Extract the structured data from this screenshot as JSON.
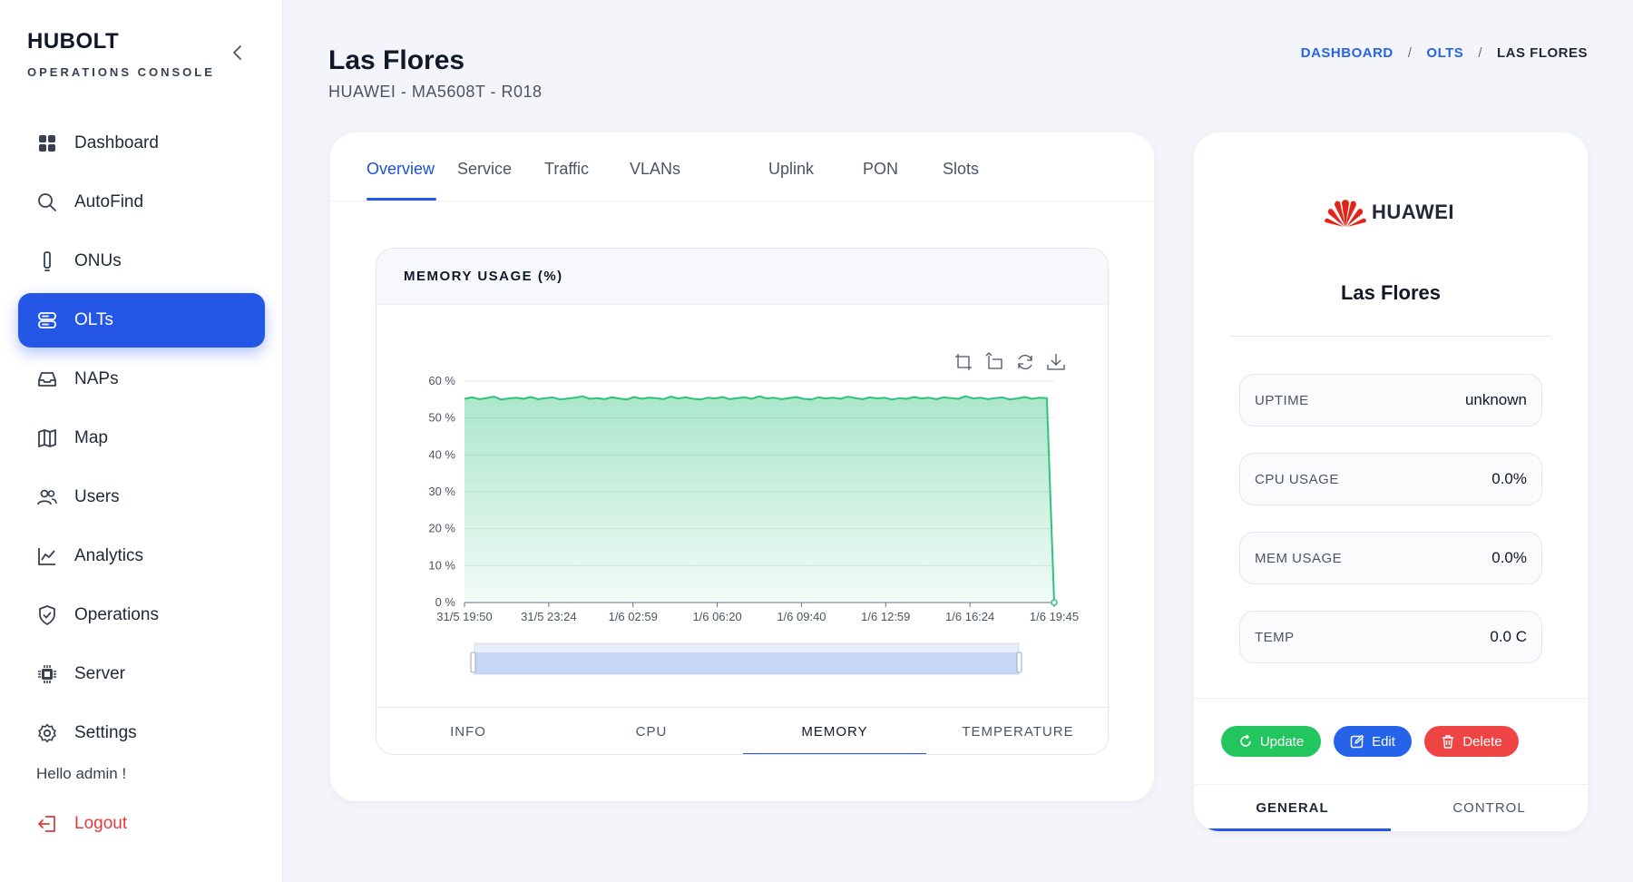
{
  "brand": {
    "title": "HUBOLT",
    "subtitle": "OPERATIONS CONSOLE"
  },
  "sidebar": {
    "items": [
      {
        "label": "Dashboard",
        "icon": "grid-icon"
      },
      {
        "label": "AutoFind",
        "icon": "search-icon"
      },
      {
        "label": "ONUs",
        "icon": "device-icon"
      },
      {
        "label": "OLTs",
        "icon": "server-stack-icon",
        "active": true
      },
      {
        "label": "NAPs",
        "icon": "inbox-icon"
      },
      {
        "label": "Map",
        "icon": "map-icon"
      },
      {
        "label": "Users",
        "icon": "users-icon"
      },
      {
        "label": "Analytics",
        "icon": "chart-line-icon"
      },
      {
        "label": "Operations",
        "icon": "shield-icon"
      },
      {
        "label": "Server",
        "icon": "chip-icon"
      },
      {
        "label": "Settings",
        "icon": "gear-icon"
      }
    ],
    "greeting": "Hello admin !",
    "logout": "Logout"
  },
  "header": {
    "title": "Las Flores",
    "subtitle": "HUAWEI - MA5608T - R018",
    "breadcrumb": [
      "DASHBOARD",
      "OLTS",
      "LAS FLORES"
    ]
  },
  "tabs": [
    "Overview",
    "Service",
    "Traffic",
    "VLANs",
    "Uplink",
    "PON",
    "Slots"
  ],
  "active_tab": "Overview",
  "chart_card": {
    "title": "MEMORY USAGE (%)",
    "tabs": [
      "INFO",
      "CPU",
      "MEMORY",
      "TEMPERATURE"
    ],
    "active_tab": "MEMORY"
  },
  "chart_data": {
    "type": "area",
    "title": "MEMORY USAGE (%)",
    "xlabel": "",
    "ylabel": "",
    "ylim": [
      0,
      60
    ],
    "yticks": [
      "0 %",
      "10 %",
      "20 %",
      "30 %",
      "40 %",
      "50 %",
      "60 %"
    ],
    "x_tick_labels": [
      "31/5 19:50",
      "31/5 23:24",
      "1/6 02:59",
      "1/6 06:20",
      "1/6 09:40",
      "1/6 12:59",
      "1/6 16:24",
      "1/6 19:45"
    ],
    "series": [
      {
        "values": [
          55.2,
          55.6,
          55.1,
          55.4,
          55.8,
          55.0,
          55.3,
          55.5,
          55.2,
          55.7,
          55.1,
          55.4,
          55.6,
          55.0,
          55.3,
          55.5,
          55.9,
          55.2,
          55.4,
          55.1,
          55.6,
          55.3,
          55.0,
          55.7,
          55.2,
          55.5,
          55.4,
          55.1,
          55.8,
          55.3,
          55.6,
          55.2,
          55.0,
          55.5,
          55.3,
          55.7,
          55.1,
          55.4,
          55.6,
          55.2,
          55.9,
          55.3,
          55.5,
          55.1,
          55.4,
          55.7,
          55.2,
          55.0,
          55.6,
          55.3,
          55.5,
          55.2,
          55.8,
          55.4,
          55.1,
          55.6,
          55.3,
          55.5,
          55.0,
          55.4,
          55.2,
          55.7,
          55.3,
          55.5,
          55.1,
          55.6,
          55.4,
          55.2,
          55.9,
          55.3,
          55.5,
          55.1,
          55.4,
          55.6,
          55.0,
          55.3,
          55.7,
          55.2,
          55.5,
          55.4,
          0
        ],
        "color": "#2ec27e"
      }
    ],
    "grid": true,
    "toolbox": [
      "zoom-icon",
      "zoom-reset-icon",
      "refresh-icon",
      "download-icon"
    ],
    "datazoom_slider": true
  },
  "device": {
    "brand": "HUAWEI",
    "name": "Las Flores",
    "stats": [
      {
        "label": "UPTIME",
        "value": "unknown"
      },
      {
        "label": "CPU USAGE",
        "value": "0.0%"
      },
      {
        "label": "MEM USAGE",
        "value": "0.0%"
      },
      {
        "label": "TEMP",
        "value": "0.0 C"
      }
    ],
    "buttons": {
      "update": "Update",
      "edit": "Edit",
      "delete": "Delete"
    },
    "tabs": [
      "GENERAL",
      "CONTROL"
    ],
    "active_tab": "GENERAL"
  },
  "colors": {
    "accent": "#2457e6",
    "success": "#22c55e",
    "danger": "#ef4444",
    "series": "#2ec27e"
  }
}
